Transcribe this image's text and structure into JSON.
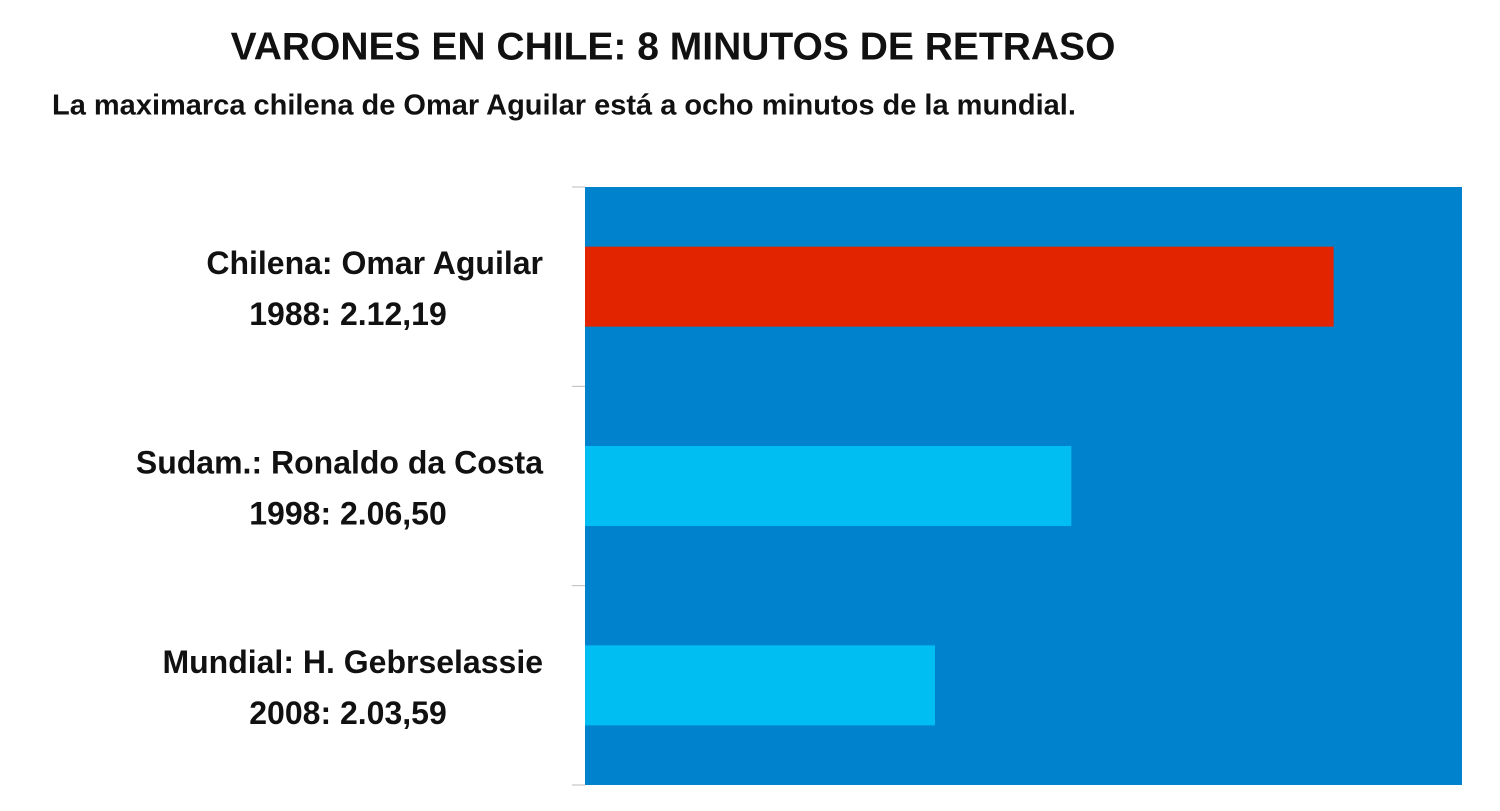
{
  "chart_data": {
    "type": "barh",
    "title": "VARONES EN CHILE: 8 MINUTOS DE RETRASO",
    "subtitle": "La maximarca chilena de Omar Aguilar está a ocho minutos de la mundial.",
    "categories": [
      "Chilena: Omar Aguilar",
      "Sudam.: Ronaldo da Costa",
      "Mundial: H. Gebrselassie"
    ],
    "category_details": [
      "1988: 2.12,19",
      "1998: 2.06,50",
      "2008: 2.03,59"
    ],
    "values": [
      7939,
      7610,
      7439
    ],
    "colors": [
      "#e32400",
      "#00bdf2",
      "#00bdf2"
    ],
    "background": "#0083cc",
    "xlim": [
      7000,
      8100
    ]
  }
}
